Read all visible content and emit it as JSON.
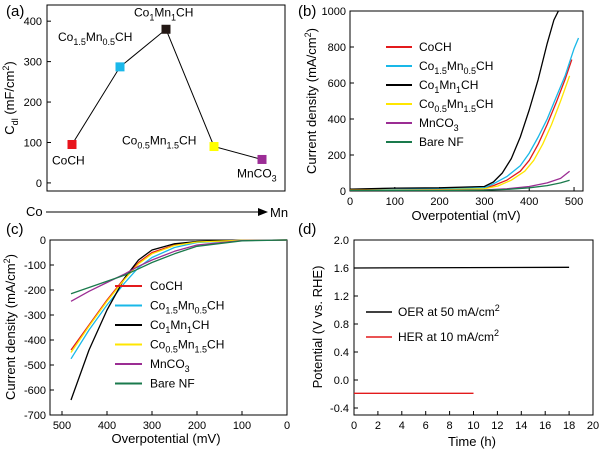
{
  "chart_data": [
    {
      "id": "a",
      "panel_label": "(a)",
      "type": "scatter",
      "ylabel": "C",
      "ylabel_sub": "dl",
      "ylabel_rest": " (mF/cm",
      "ylabel_sup": "2",
      "ylabel_end": ")",
      "ylim": [
        -20,
        440
      ],
      "yticks": [
        "0",
        "100",
        "200",
        "300",
        "400"
      ],
      "arrow_left_label": "Co",
      "arrow_right_label": "Mn",
      "points": [
        {
          "name": "CoCH",
          "parts": [
            [
              "CoCH",
              ""
            ]
          ],
          "y": 95,
          "color": "#e8141c"
        },
        {
          "name": "Co1.5Mn0.5CH",
          "parts": [
            [
              "Co",
              ""
            ],
            [
              "1.5",
              "sub"
            ],
            [
              "Mn",
              ""
            ],
            [
              "0.5",
              "sub"
            ],
            [
              "CH",
              ""
            ]
          ],
          "y": 287,
          "color": "#1ab8ea"
        },
        {
          "name": "Co1Mn1CH",
          "parts": [
            [
              "Co",
              ""
            ],
            [
              "1",
              "sub"
            ],
            [
              "Mn",
              ""
            ],
            [
              "1",
              "sub"
            ],
            [
              "CH",
              ""
            ]
          ],
          "y": 380,
          "color": "#231815"
        },
        {
          "name": "Co0.5Mn1.5CH",
          "parts": [
            [
              "Co",
              ""
            ],
            [
              "0.5",
              "sub"
            ],
            [
              "Mn",
              ""
            ],
            [
              "1.5",
              "sub"
            ],
            [
              "CH",
              ""
            ]
          ],
          "y": 90,
          "color": "#ffff00"
        },
        {
          "name": "MnCO3",
          "parts": [
            [
              "MnCO",
              ""
            ],
            [
              "3",
              "sub"
            ]
          ],
          "y": 58,
          "color": "#9c2d96"
        }
      ]
    },
    {
      "id": "b",
      "panel_label": "(b)",
      "type": "line",
      "xlabel": "Overpotential (mV)",
      "ylabel_parts": [
        [
          "Current density (mA/cm",
          ""
        ],
        [
          "2",
          "sup"
        ],
        [
          ")",
          ""
        ]
      ],
      "xlim": [
        0,
        520
      ],
      "ylim": [
        0,
        1000
      ],
      "xticks": [
        0,
        100,
        200,
        300,
        400,
        500
      ],
      "yticks": [
        0,
        200,
        400,
        600,
        800,
        1000
      ],
      "series": [
        {
          "name": "CoCH",
          "parts": [
            [
              "CoCH",
              ""
            ]
          ],
          "color": "#e31a1c",
          "x": [
            0,
            100,
            200,
            300,
            320,
            350,
            380,
            400,
            420,
            440,
            460,
            480,
            495
          ],
          "y": [
            8,
            8,
            12,
            16,
            30,
            60,
            110,
            170,
            260,
            370,
            490,
            620,
            730
          ]
        },
        {
          "name": "Co1.5Mn0.5CH",
          "parts": [
            [
              "Co",
              ""
            ],
            [
              "1.5",
              "sub"
            ],
            [
              "Mn",
              ""
            ],
            [
              "0.5",
              "sub"
            ],
            [
              "CH",
              ""
            ]
          ],
          "color": "#19b8e8",
          "x": [
            0,
            100,
            200,
            300,
            320,
            350,
            380,
            400,
            420,
            440,
            460,
            480,
            500,
            510
          ],
          "y": [
            8,
            9,
            12,
            18,
            40,
            80,
            140,
            210,
            300,
            400,
            520,
            640,
            790,
            850
          ]
        },
        {
          "name": "Co1Mn1CH",
          "parts": [
            [
              "Co",
              ""
            ],
            [
              "1",
              "sub"
            ],
            [
              "Mn",
              ""
            ],
            [
              "1",
              "sub"
            ],
            [
              "CH",
              ""
            ]
          ],
          "color": "#000000",
          "x": [
            0,
            100,
            200,
            300,
            320,
            340,
            360,
            380,
            400,
            420,
            440,
            455,
            465
          ],
          "y": [
            10,
            16,
            18,
            25,
            50,
            100,
            180,
            300,
            450,
            620,
            820,
            950,
            1000
          ]
        },
        {
          "name": "Co0.5Mn1.5CH",
          "parts": [
            [
              "Co",
              ""
            ],
            [
              "0.5",
              "sub"
            ],
            [
              "Mn",
              ""
            ],
            [
              "1.5",
              "sub"
            ],
            [
              "CH",
              ""
            ]
          ],
          "color": "#ffe600",
          "x": [
            0,
            100,
            200,
            300,
            330,
            360,
            390,
            410,
            430,
            450,
            470,
            490
          ],
          "y": [
            5,
            5,
            8,
            12,
            28,
            60,
            110,
            170,
            260,
            370,
            500,
            640
          ]
        },
        {
          "name": "MnCO3",
          "parts": [
            [
              "MnCO",
              ""
            ],
            [
              "3",
              "sub"
            ]
          ],
          "color": "#9b2d93",
          "x": [
            0,
            100,
            200,
            300,
            350,
            400,
            440,
            470,
            490
          ],
          "y": [
            3,
            3,
            4,
            6,
            12,
            25,
            45,
            70,
            110
          ]
        },
        {
          "name": "Bare NF",
          "parts": [
            [
              "Bare NF",
              ""
            ]
          ],
          "color": "#1a7a4c",
          "x": [
            0,
            100,
            200,
            300,
            350,
            400,
            440,
            470,
            490
          ],
          "y": [
            2,
            2,
            3,
            5,
            9,
            18,
            30,
            45,
            60
          ]
        }
      ]
    },
    {
      "id": "c",
      "panel_label": "(c)",
      "type": "line",
      "xlabel": "Overpotential (mV)",
      "ylabel_parts": [
        [
          "Current density (mA/cm",
          ""
        ],
        [
          "2",
          "sup"
        ],
        [
          ")",
          ""
        ]
      ],
      "xlim": [
        500,
        0
      ],
      "ylim": [
        -700,
        0
      ],
      "xticks": [
        500,
        400,
        300,
        200,
        100,
        0
      ],
      "yticks": [
        0,
        -100,
        -200,
        -300,
        -400,
        -500,
        -600,
        -700
      ],
      "series": [
        {
          "name": "CoCH",
          "parts": [
            [
              "CoCH",
              ""
            ]
          ],
          "color": "#e31a1c",
          "x": [
            0,
            100,
            200,
            250,
            300,
            330,
            360,
            400,
            440,
            480
          ],
          "y": [
            0,
            -1,
            -8,
            -20,
            -50,
            -90,
            -150,
            -240,
            -340,
            -440
          ]
        },
        {
          "name": "Co1.5Mn0.5CH",
          "parts": [
            [
              "Co",
              ""
            ],
            [
              "1.5",
              "sub"
            ],
            [
              "Mn",
              ""
            ],
            [
              "0.5",
              "sub"
            ],
            [
              "CH",
              ""
            ]
          ],
          "color": "#19b8e8",
          "x": [
            0,
            100,
            200,
            250,
            300,
            330,
            360,
            400,
            440,
            480
          ],
          "y": [
            0,
            -1,
            -10,
            -30,
            -70,
            -110,
            -170,
            -260,
            -360,
            -475
          ]
        },
        {
          "name": "Co1Mn1CH",
          "parts": [
            [
              "Co",
              ""
            ],
            [
              "1",
              "sub"
            ],
            [
              "Mn",
              ""
            ],
            [
              "1",
              "sub"
            ],
            [
              "CH",
              ""
            ]
          ],
          "color": "#000000",
          "x": [
            0,
            100,
            200,
            250,
            300,
            330,
            360,
            400,
            440,
            480
          ],
          "y": [
            0,
            -1,
            -6,
            -15,
            -40,
            -80,
            -150,
            -280,
            -440,
            -640
          ]
        },
        {
          "name": "Co0.5Mn1.5CH",
          "parts": [
            [
              "Co",
              ""
            ],
            [
              "0.5",
              "sub"
            ],
            [
              "Mn",
              ""
            ],
            [
              "1.5",
              "sub"
            ],
            [
              "CH",
              ""
            ]
          ],
          "color": "#ffe600",
          "x": [
            0,
            100,
            200,
            250,
            300,
            330,
            360,
            400,
            440,
            480
          ],
          "y": [
            0,
            -1,
            -8,
            -22,
            -55,
            -95,
            -155,
            -245,
            -345,
            -450
          ]
        },
        {
          "name": "MnCO3",
          "parts": [
            [
              "MnCO",
              ""
            ],
            [
              "3",
              "sub"
            ]
          ],
          "color": "#9b2d93",
          "x": [
            0,
            100,
            200,
            250,
            300,
            330,
            360,
            400,
            440,
            480
          ],
          "y": [
            0,
            -2,
            -20,
            -45,
            -80,
            -105,
            -135,
            -170,
            -205,
            -245
          ]
        },
        {
          "name": "Bare NF",
          "parts": [
            [
              "Bare NF",
              ""
            ]
          ],
          "color": "#1a7a4c",
          "x": [
            0,
            100,
            200,
            250,
            300,
            330,
            360,
            400,
            440,
            480
          ],
          "y": [
            0,
            -3,
            -25,
            -55,
            -90,
            -115,
            -140,
            -165,
            -190,
            -215
          ]
        }
      ]
    },
    {
      "id": "d",
      "panel_label": "(d)",
      "type": "line",
      "xlabel": "Time (h)",
      "ylabel": "Potential (V vs. RHE)",
      "xlim": [
        0,
        20
      ],
      "ylim": [
        -0.5,
        2.0
      ],
      "xticks": [
        0,
        2,
        4,
        6,
        8,
        10,
        12,
        14,
        16,
        18,
        20
      ],
      "yticks": [
        "2.0",
        "1.6",
        "1.2",
        "0.8",
        "0.4",
        "0.0",
        "-0.4"
      ],
      "ytick_values": [
        2.0,
        1.6,
        1.2,
        0.8,
        0.4,
        0.0,
        -0.4
      ],
      "series": [
        {
          "name": "OER at 50 mA/cm2",
          "parts": [
            [
              "OER at 50 mA/cm",
              ""
            ],
            [
              "2",
              "sup"
            ]
          ],
          "color": "#000000",
          "x": [
            0,
            18
          ],
          "y": [
            1.6,
            1.61
          ]
        },
        {
          "name": "HER at 10 mA/cm2",
          "parts": [
            [
              "HER at 10 mA/cm",
              ""
            ],
            [
              "2",
              "sup"
            ]
          ],
          "color": "#e31a1c",
          "x": [
            0,
            10
          ],
          "y": [
            -0.19,
            -0.19
          ]
        }
      ]
    }
  ]
}
